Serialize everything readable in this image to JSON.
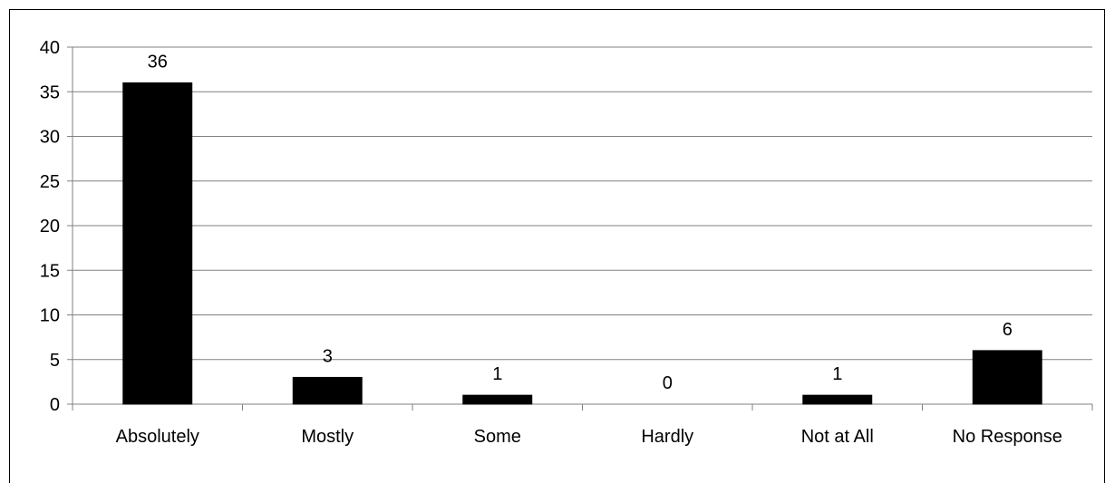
{
  "chart_data": {
    "type": "bar",
    "title": "",
    "xlabel": "",
    "ylabel": "",
    "categories": [
      "Absolutely",
      "Mostly",
      "Some",
      "Hardly",
      "Not at All",
      "No Response"
    ],
    "values": [
      36,
      3,
      1,
      0,
      1,
      6
    ],
    "data_labels": [
      "36",
      "3",
      "1",
      "0",
      "1",
      "6"
    ],
    "ylim": [
      0,
      40
    ],
    "yticks": [
      0,
      5,
      10,
      15,
      20,
      25,
      30,
      35,
      40
    ],
    "ytick_labels": [
      "0",
      "5",
      "10",
      "15",
      "20",
      "25",
      "30",
      "35",
      "40"
    ],
    "grid": true,
    "legend": "none",
    "colors": {
      "bar": "#000000",
      "grid": "#808080",
      "axis": "#808080",
      "background": "#ffffff"
    }
  }
}
